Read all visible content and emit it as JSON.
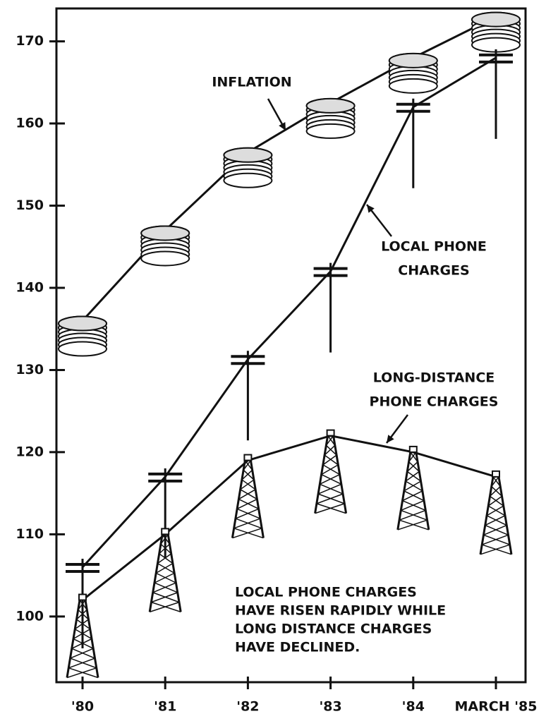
{
  "chart_data": {
    "type": "line",
    "categories": [
      "'80",
      "'81",
      "'82",
      "'83",
      "'84",
      "MARCH '85"
    ],
    "series": [
      {
        "name_lines": [
          "INFLATION"
        ],
        "marker": "coins",
        "color": "#111",
        "values": [
          136,
          147,
          156.5,
          162.5,
          168,
          173
        ]
      },
      {
        "name_lines": [
          "LOCAL PHONE",
          "CHARGES"
        ],
        "marker": "pole",
        "color": "#111",
        "values": [
          106,
          117,
          131.3,
          142,
          162,
          168
        ]
      },
      {
        "name_lines": [
          "LONG-DISTANCE",
          "PHONE CHARGES"
        ],
        "marker": "tower",
        "color": "#111",
        "values": [
          102,
          110,
          119,
          122,
          120,
          117
        ]
      }
    ],
    "ylim": [
      92,
      174
    ],
    "yticks": [
      100,
      110,
      120,
      130,
      140,
      150,
      160,
      170
    ],
    "note": [
      "LOCAL PHONE CHARGES",
      "HAVE RISEN RAPIDLY WHILE",
      "LONG DISTANCE CHARGES",
      "HAVE DECLINED."
    ]
  }
}
